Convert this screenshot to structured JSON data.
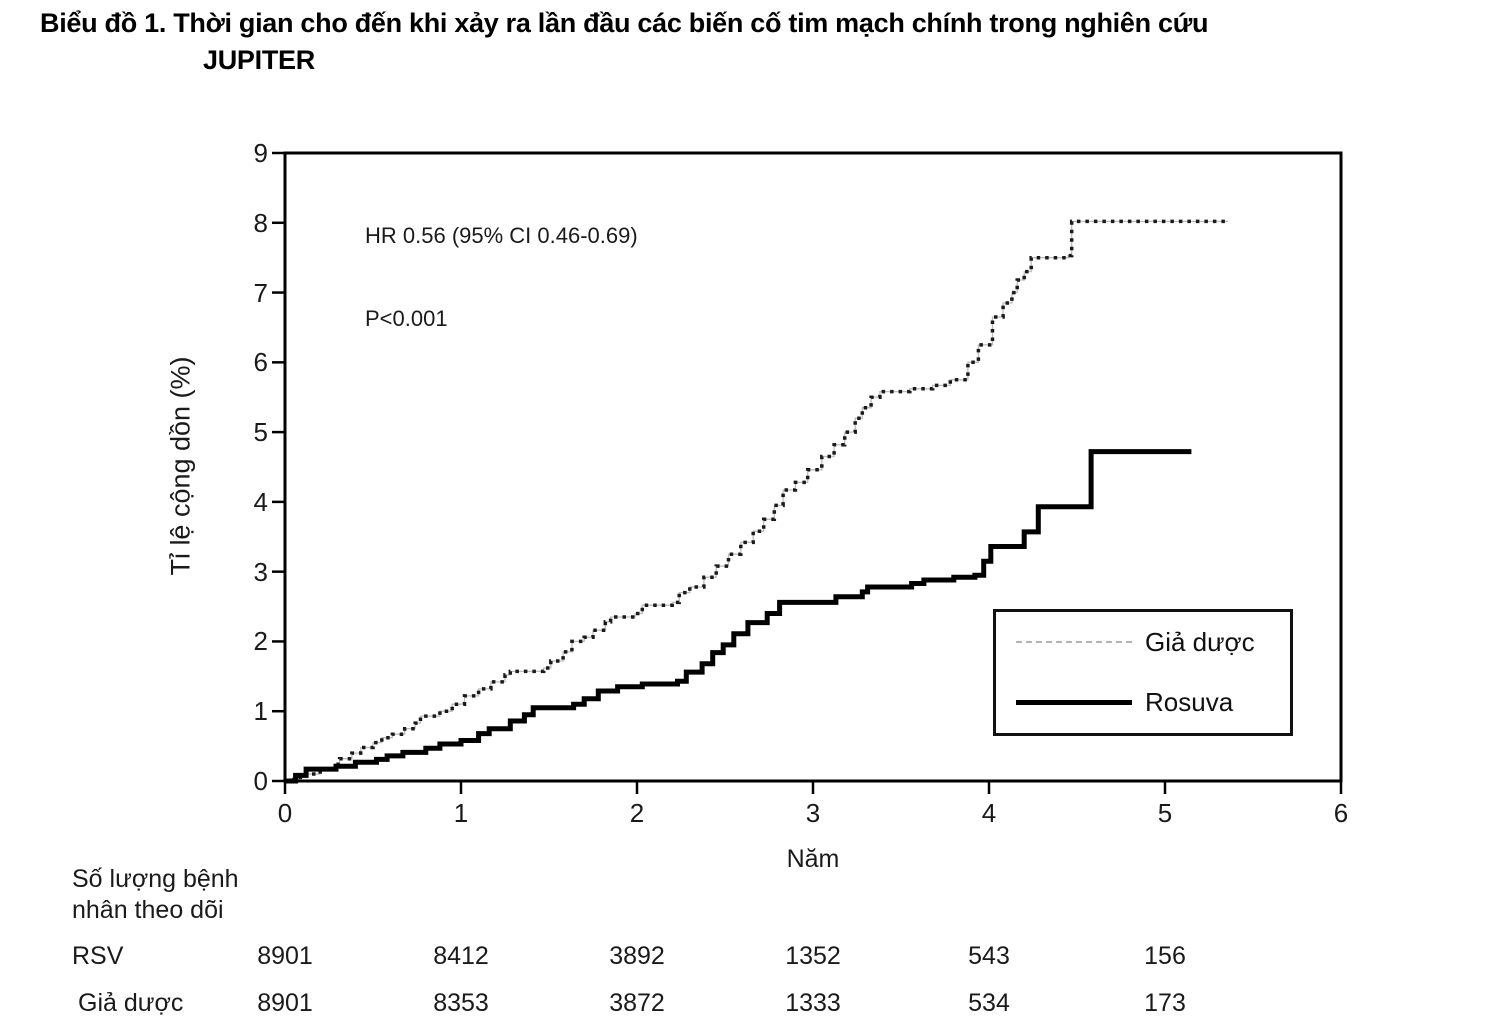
{
  "title": {
    "line1": "Biểu đồ 1. Thời gian cho đến khi xảy ra lần đầu các biến cố tim mạch chính trong nghiên cứu",
    "line2": "JUPITER"
  },
  "chart_data": {
    "type": "line",
    "subtype": "kaplan-meier-cumulative-incidence-step",
    "title": "Biểu đồ 1. Thời gian cho đến khi xảy ra lần đầu các biến cố tim mạch chính trong nghiên cứu JUPITER",
    "xlabel": "Năm",
    "ylabel": "Tỉ lệ cộng dồn (%)",
    "xlim": [
      0,
      6
    ],
    "ylim": [
      0,
      9
    ],
    "x_ticks": [
      "0",
      "1",
      "2",
      "3",
      "4",
      "5",
      "6"
    ],
    "y_ticks": [
      "0",
      "1",
      "2",
      "3",
      "4",
      "5",
      "6",
      "7",
      "8",
      "9"
    ],
    "grid": false,
    "legend_position": "lower-right-box",
    "annotations": {
      "hr": "HR 0.56 (95% CI 0.46-0.69)",
      "p": "P<0.001"
    },
    "series": [
      {
        "name": "Giả dược",
        "style": "dashed",
        "points": [
          [
            0,
            0
          ],
          [
            0.05,
            0.05
          ],
          [
            0.12,
            0.1
          ],
          [
            0.2,
            0.16
          ],
          [
            0.28,
            0.24
          ],
          [
            0.31,
            0.32
          ],
          [
            0.38,
            0.4
          ],
          [
            0.43,
            0.48
          ],
          [
            0.5,
            0.55
          ],
          [
            0.55,
            0.62
          ],
          [
            0.61,
            0.67
          ],
          [
            0.68,
            0.75
          ],
          [
            0.74,
            0.83
          ],
          [
            0.77,
            0.93
          ],
          [
            0.88,
            1.0
          ],
          [
            0.95,
            1.1
          ],
          [
            1.02,
            1.22
          ],
          [
            1.1,
            1.32
          ],
          [
            1.17,
            1.42
          ],
          [
            1.25,
            1.52
          ],
          [
            1.28,
            1.57
          ],
          [
            1.47,
            1.62
          ],
          [
            1.51,
            1.72
          ],
          [
            1.58,
            1.85
          ],
          [
            1.63,
            2.0
          ],
          [
            1.7,
            2.06
          ],
          [
            1.75,
            2.16
          ],
          [
            1.82,
            2.28
          ],
          [
            1.85,
            2.35
          ],
          [
            1.99,
            2.4
          ],
          [
            2.03,
            2.52
          ],
          [
            2.2,
            2.56
          ],
          [
            2.24,
            2.7
          ],
          [
            2.3,
            2.78
          ],
          [
            2.38,
            2.92
          ],
          [
            2.45,
            3.08
          ],
          [
            2.52,
            3.25
          ],
          [
            2.59,
            3.42
          ],
          [
            2.66,
            3.58
          ],
          [
            2.72,
            3.75
          ],
          [
            2.78,
            3.95
          ],
          [
            2.83,
            4.17
          ],
          [
            2.9,
            4.28
          ],
          [
            2.97,
            4.46
          ],
          [
            3.05,
            4.65
          ],
          [
            3.12,
            4.82
          ],
          [
            3.18,
            5.0
          ],
          [
            3.24,
            5.2
          ],
          [
            3.28,
            5.35
          ],
          [
            3.33,
            5.5
          ],
          [
            3.38,
            5.58
          ],
          [
            3.55,
            5.62
          ],
          [
            3.68,
            5.67
          ],
          [
            3.78,
            5.75
          ],
          [
            3.88,
            6.0
          ],
          [
            3.94,
            6.25
          ],
          [
            4.02,
            6.65
          ],
          [
            4.08,
            6.85
          ],
          [
            4.13,
            7.0
          ],
          [
            4.16,
            7.18
          ],
          [
            4.2,
            7.3
          ],
          [
            4.24,
            7.5
          ],
          [
            4.45,
            7.53
          ],
          [
            4.47,
            8.02
          ],
          [
            5.36,
            8.02
          ]
        ]
      },
      {
        "name": "Rosuva",
        "style": "solid",
        "points": [
          [
            0,
            0
          ],
          [
            0.06,
            0.08
          ],
          [
            0.12,
            0.17
          ],
          [
            0.29,
            0.21
          ],
          [
            0.4,
            0.27
          ],
          [
            0.52,
            0.31
          ],
          [
            0.58,
            0.36
          ],
          [
            0.67,
            0.41
          ],
          [
            0.8,
            0.47
          ],
          [
            0.88,
            0.53
          ],
          [
            1.0,
            0.58
          ],
          [
            1.1,
            0.68
          ],
          [
            1.16,
            0.75
          ],
          [
            1.28,
            0.86
          ],
          [
            1.36,
            0.95
          ],
          [
            1.41,
            1.05
          ],
          [
            1.64,
            1.1
          ],
          [
            1.7,
            1.18
          ],
          [
            1.78,
            1.29
          ],
          [
            1.89,
            1.35
          ],
          [
            2.03,
            1.39
          ],
          [
            2.23,
            1.43
          ],
          [
            2.28,
            1.56
          ],
          [
            2.37,
            1.68
          ],
          [
            2.43,
            1.84
          ],
          [
            2.49,
            1.95
          ],
          [
            2.55,
            2.11
          ],
          [
            2.63,
            2.27
          ],
          [
            2.74,
            2.4
          ],
          [
            2.81,
            2.56
          ],
          [
            3.13,
            2.64
          ],
          [
            3.28,
            2.71
          ],
          [
            3.31,
            2.78
          ],
          [
            3.56,
            2.83
          ],
          [
            3.63,
            2.88
          ],
          [
            3.8,
            2.92
          ],
          [
            3.92,
            2.95
          ],
          [
            3.97,
            3.15
          ],
          [
            4.01,
            3.36
          ],
          [
            4.2,
            3.57
          ],
          [
            4.28,
            3.93
          ],
          [
            4.57,
            3.93
          ],
          [
            4.58,
            4.72
          ],
          [
            5.15,
            4.72
          ]
        ]
      }
    ]
  },
  "number_at_risk": {
    "header": "Số lượng bệnh nhân theo dõi",
    "time_points": [
      0,
      1,
      2,
      3,
      4,
      5
    ],
    "rows": [
      {
        "label": "RSV",
        "values": [
          "8901",
          "8412",
          "3892",
          "1352",
          "543",
          "156"
        ]
      },
      {
        "label": "Giả dược",
        "values": [
          "8901",
          "8353",
          "3872",
          "1333",
          "534",
          "173"
        ]
      }
    ]
  },
  "colors": {
    "axis": "#000000",
    "text": "#1a1a1a",
    "placebo_dash": "#1a1a1a",
    "placebo_underlay": "#bdbdbd",
    "rosuva": "#000000"
  }
}
